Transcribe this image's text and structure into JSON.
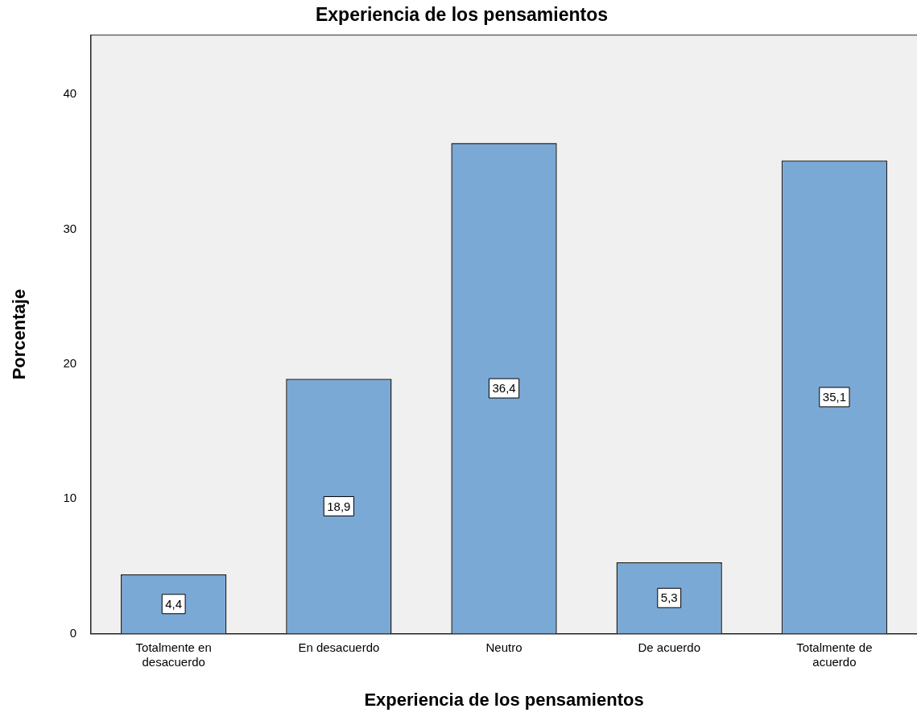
{
  "chart_data": {
    "type": "bar",
    "title": "Experiencia de los pensamientos",
    "xlabel": "Experiencia de los pensamientos",
    "ylabel": "Porcentaje",
    "categories": [
      "Totalmente en desacuerdo",
      "En desacuerdo",
      "Neutro",
      "De acuerdo",
      "Totalmente de acuerdo"
    ],
    "values": [
      4.4,
      18.9,
      36.4,
      5.3,
      35.1
    ],
    "color": "#7ba9d6",
    "ylim": [
      0,
      44.4
    ],
    "yticks": [
      0,
      10,
      20,
      30,
      40
    ],
    "value_labels": [
      "4,4",
      "18,9",
      "36,4",
      "5,3",
      "35,1"
    ],
    "grid": false,
    "legend": false
  }
}
